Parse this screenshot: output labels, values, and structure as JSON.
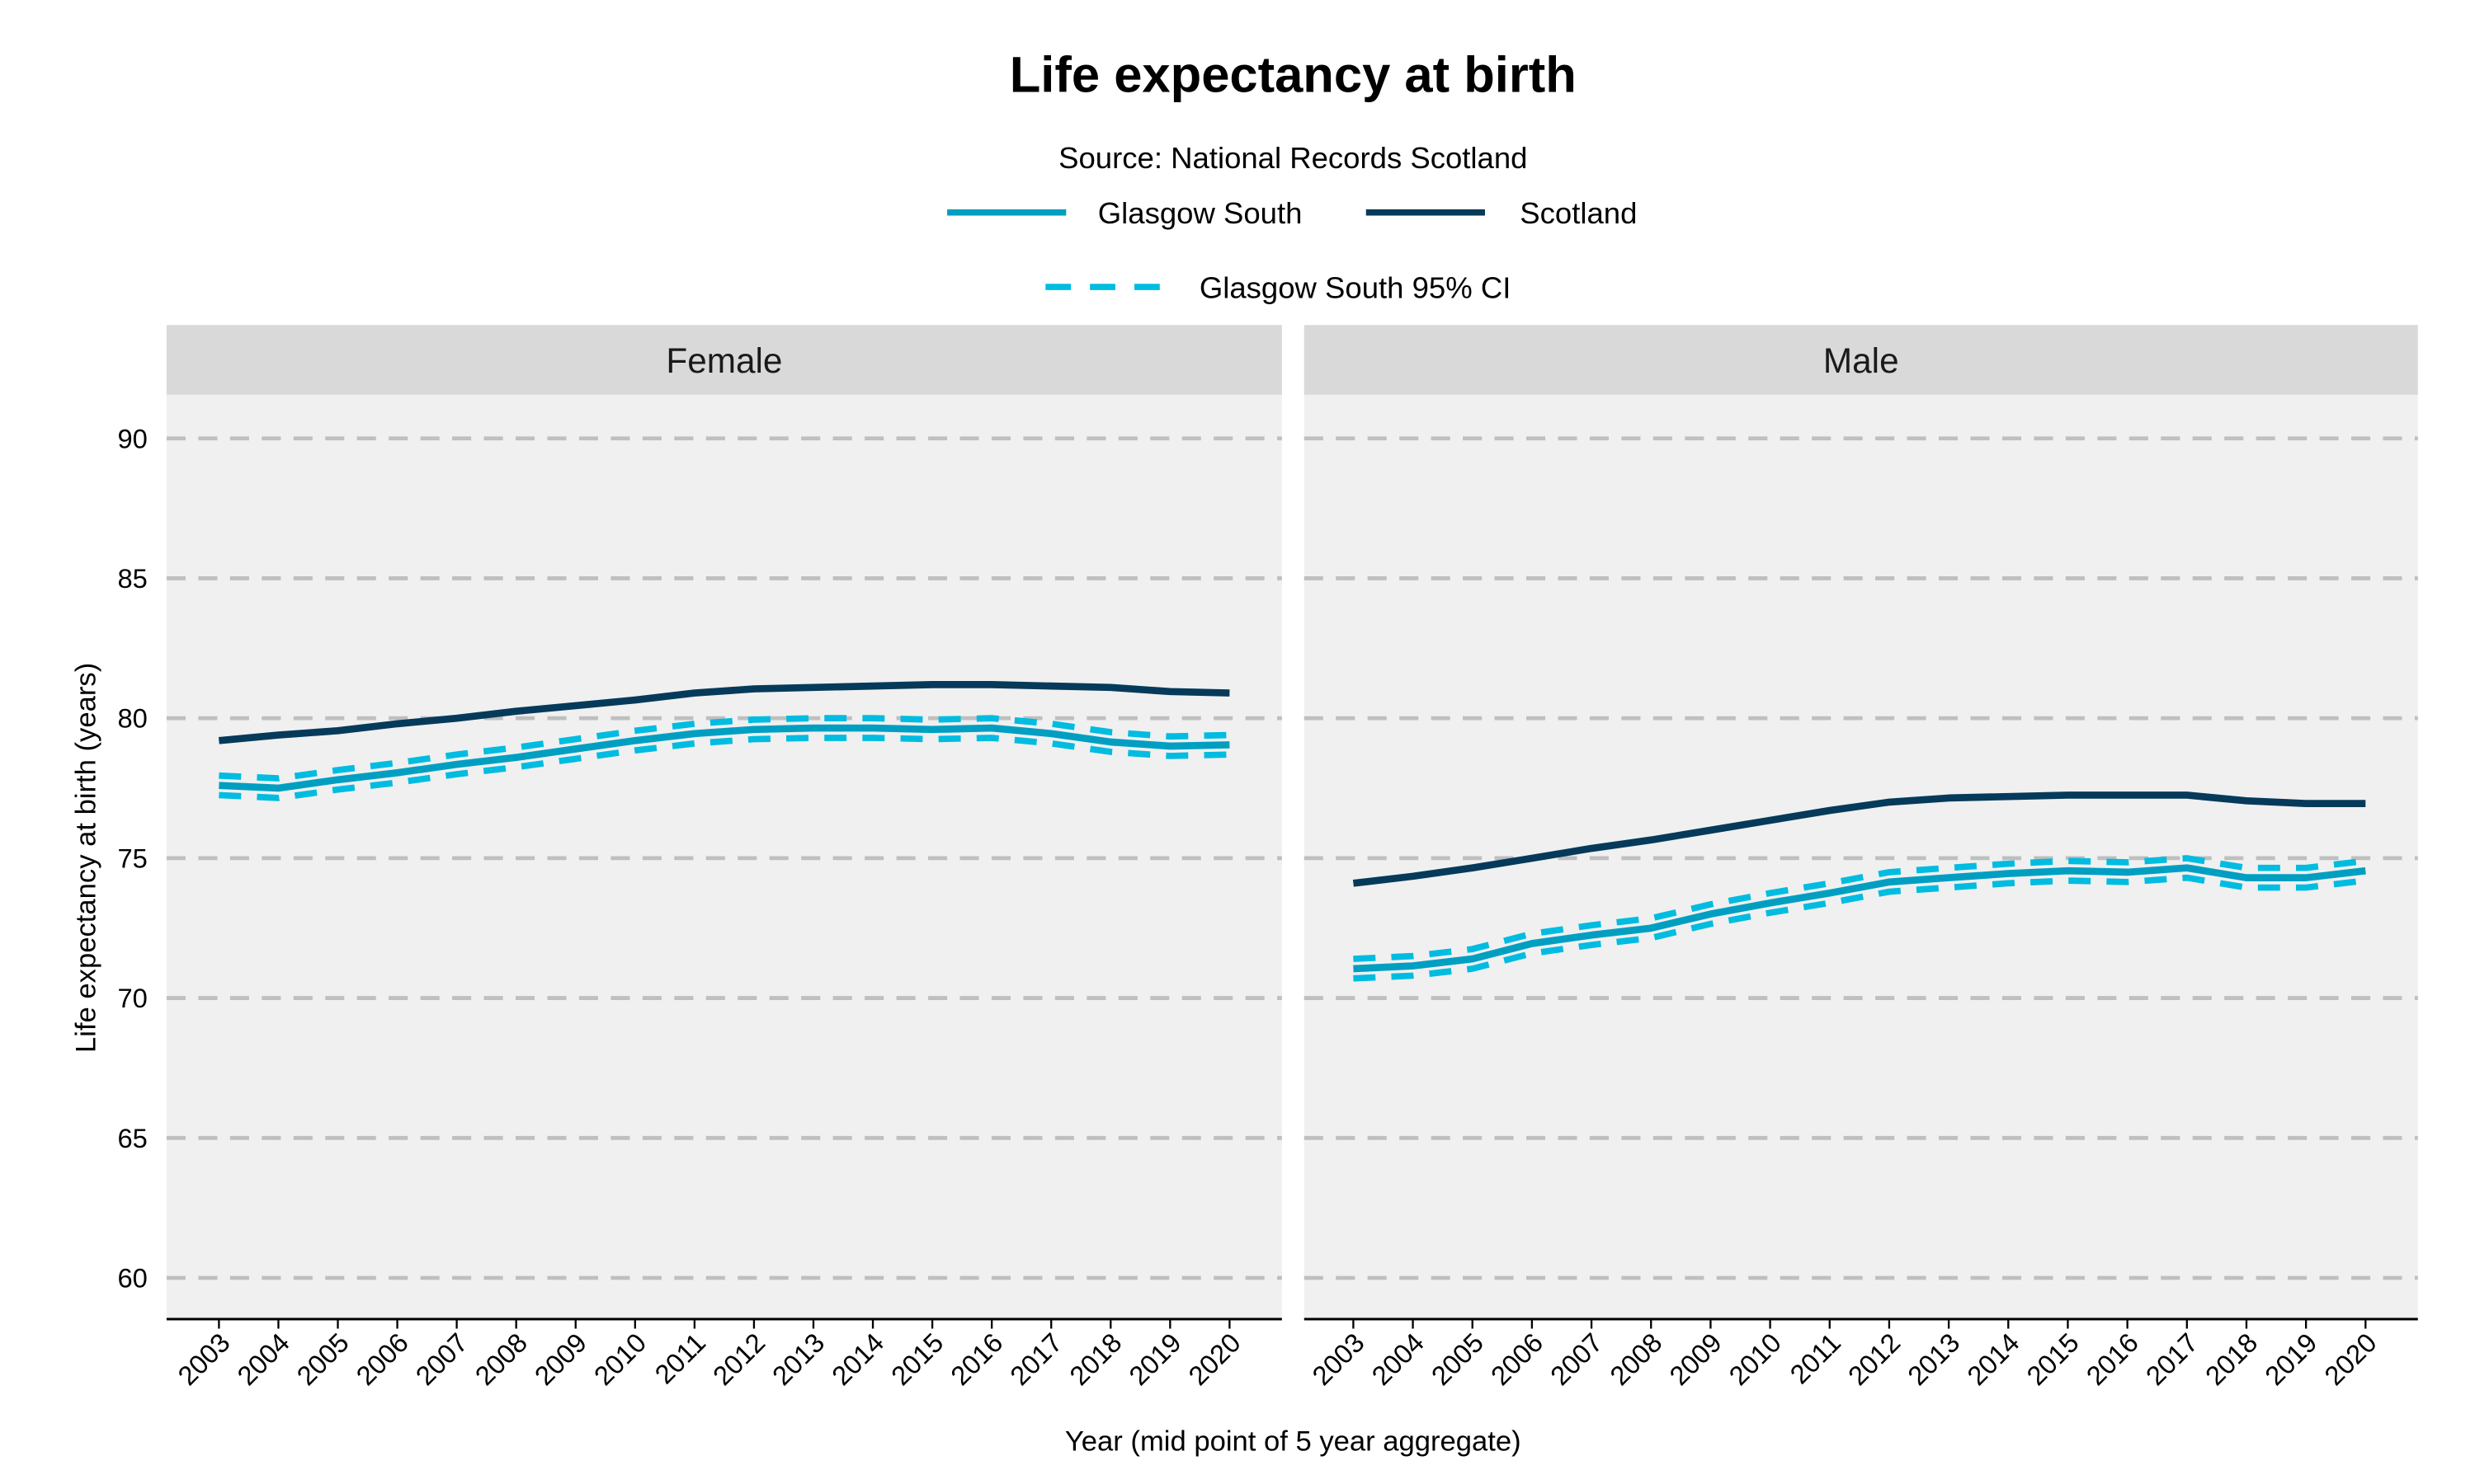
{
  "chart_data": {
    "type": "line",
    "title": "Life expectancy at birth",
    "subtitle": "Source: National Records Scotland",
    "xlabel": "Year (mid point of 5 year aggregate)",
    "ylabel": "Life expectancy at birth (years)",
    "ylim": [
      58.5,
      91.5
    ],
    "yticks": [
      60,
      65,
      70,
      75,
      80,
      85,
      90
    ],
    "grid": "horizontal dashed",
    "legend_position": "top",
    "legend": [
      {
        "label": "Glasgow South",
        "color": "#009fc1",
        "style": "solid"
      },
      {
        "label": "Scotland",
        "color": "#063a5a",
        "style": "solid"
      },
      {
        "label": "Glasgow South 95% CI",
        "color": "#00bce0",
        "style": "dashed"
      }
    ],
    "x": [
      "2003",
      "2004",
      "2005",
      "2006",
      "2007",
      "2008",
      "2009",
      "2010",
      "2011",
      "2012",
      "2013",
      "2014",
      "2015",
      "2016",
      "2017",
      "2018",
      "2019",
      "2020"
    ],
    "panels": [
      {
        "label": "Female",
        "series": [
          {
            "name": "Scotland",
            "values": [
              79.2,
              79.4,
              79.55,
              79.8,
              80.0,
              80.25,
              80.45,
              80.65,
              80.9,
              81.05,
              81.1,
              81.15,
              81.2,
              81.2,
              81.15,
              81.1,
              80.95,
              80.9
            ]
          },
          {
            "name": "Glasgow South",
            "values": [
              77.6,
              77.5,
              77.8,
              78.05,
              78.35,
              78.6,
              78.9,
              79.2,
              79.45,
              79.6,
              79.65,
              79.65,
              79.6,
              79.65,
              79.45,
              79.15,
              79.0,
              79.05
            ]
          },
          {
            "name": "Glasgow South 95% CI",
            "lower": [
              77.25,
              77.15,
              77.45,
              77.7,
              78.0,
              78.25,
              78.55,
              78.85,
              79.1,
              79.25,
              79.3,
              79.3,
              79.25,
              79.3,
              79.1,
              78.8,
              78.65,
              78.7
            ],
            "upper": [
              77.95,
              77.85,
              78.15,
              78.4,
              78.7,
              78.95,
              79.25,
              79.55,
              79.8,
              79.95,
              80.0,
              80.0,
              79.95,
              80.0,
              79.8,
              79.5,
              79.35,
              79.4
            ]
          }
        ]
      },
      {
        "label": "Male",
        "series": [
          {
            "name": "Scotland",
            "values": [
              74.1,
              74.35,
              74.65,
              75.0,
              75.35,
              75.65,
              76.0,
              76.35,
              76.7,
              77.0,
              77.15,
              77.2,
              77.25,
              77.25,
              77.25,
              77.05,
              76.95,
              76.95
            ]
          },
          {
            "name": "Glasgow South",
            "values": [
              71.05,
              71.15,
              71.4,
              71.95,
              72.25,
              72.5,
              73.0,
              73.4,
              73.75,
              74.15,
              74.3,
              74.45,
              74.55,
              74.5,
              74.65,
              74.3,
              74.3,
              74.55
            ]
          },
          {
            "name": "Glasgow South 95% CI",
            "lower": [
              70.7,
              70.8,
              71.05,
              71.6,
              71.9,
              72.15,
              72.65,
              73.05,
              73.4,
              73.8,
              73.95,
              74.1,
              74.2,
              74.15,
              74.3,
              73.95,
              73.95,
              74.2
            ],
            "upper": [
              71.4,
              71.5,
              71.75,
              72.3,
              72.6,
              72.85,
              73.35,
              73.75,
              74.1,
              74.5,
              74.65,
              74.8,
              74.9,
              74.85,
              75.0,
              74.65,
              74.65,
              74.9
            ]
          }
        ]
      }
    ]
  }
}
